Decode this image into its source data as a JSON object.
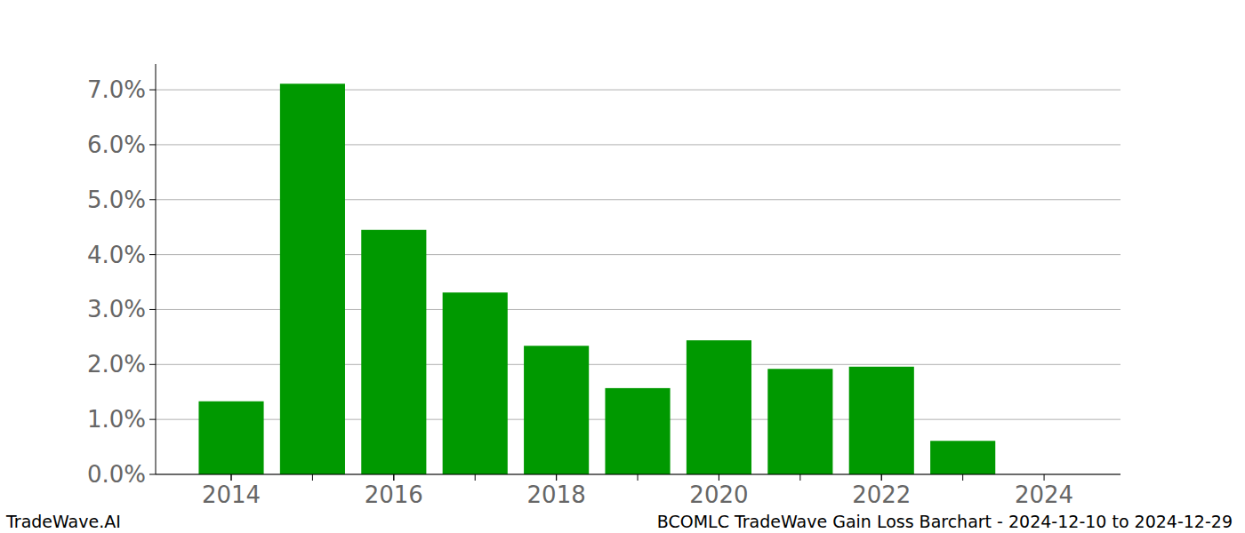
{
  "chart_data": {
    "type": "bar",
    "title": "BCOMLC TradeWave Gain Loss Barchart - 2024-12-10 to 2024-12-29",
    "annotations": [
      "TradeWave.AI"
    ],
    "x": [
      2014,
      2015,
      2016,
      2017,
      2018,
      2019,
      2020,
      2021,
      2022,
      2023
    ],
    "values": [
      1.33,
      7.11,
      4.45,
      3.31,
      2.34,
      1.57,
      2.44,
      1.92,
      1.96,
      0.61
    ],
    "color": "#009900",
    "xlim": [
      2013.07,
      2024.94
    ],
    "xticks": [
      2014,
      2016,
      2018,
      2020,
      2022,
      2024
    ],
    "ylim": [
      0,
      7.47
    ],
    "yticks": [
      {
        "value": 0,
        "label": "0.0%"
      },
      {
        "value": 1,
        "label": "1.0%"
      },
      {
        "value": 2,
        "label": "2.0%"
      },
      {
        "value": 3,
        "label": "3.0%"
      },
      {
        "value": 4,
        "label": "4.0%"
      },
      {
        "value": 5,
        "label": "5.0%"
      },
      {
        "value": 6,
        "label": "6.0%"
      },
      {
        "value": 7,
        "label": "7.0%"
      }
    ],
    "grid": true
  }
}
